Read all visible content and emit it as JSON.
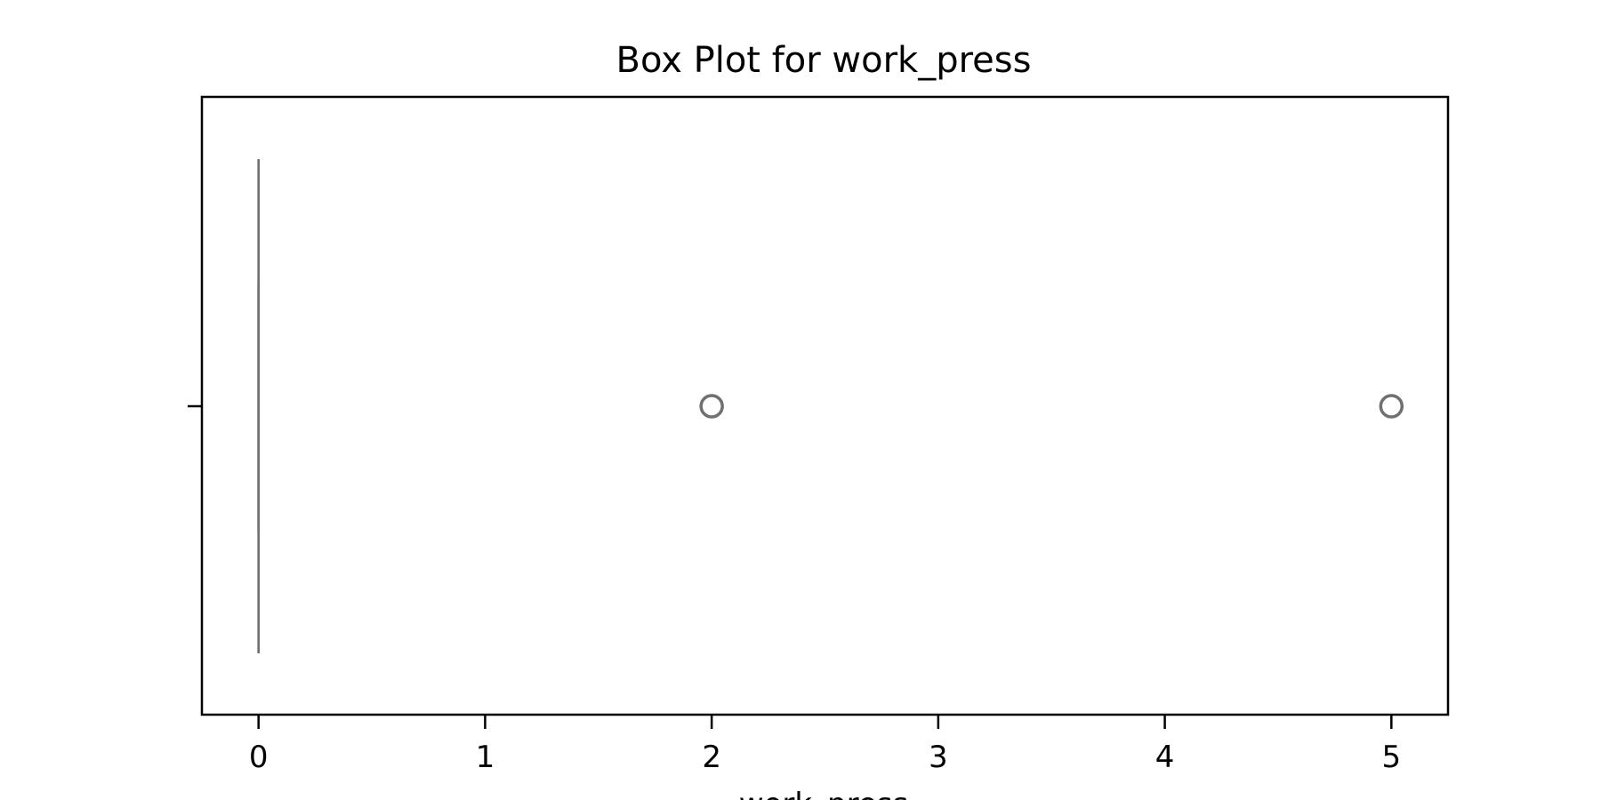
{
  "chart_data": {
    "type": "box",
    "title": "Box Plot for work_press",
    "xlabel": "work_press",
    "ylabel": "",
    "orientation": "horizontal",
    "xlim": [
      -0.25,
      5.25
    ],
    "xticks": [
      0,
      1,
      2,
      3,
      4,
      5
    ],
    "grid": false,
    "series": [
      {
        "whisker_low": 0,
        "q1": 0,
        "median": 0,
        "q3": 0,
        "whisker_high": 0,
        "outliers": [
          2,
          5
        ]
      }
    ],
    "colors": {
      "box": "#707070",
      "frame": "#000000"
    }
  }
}
